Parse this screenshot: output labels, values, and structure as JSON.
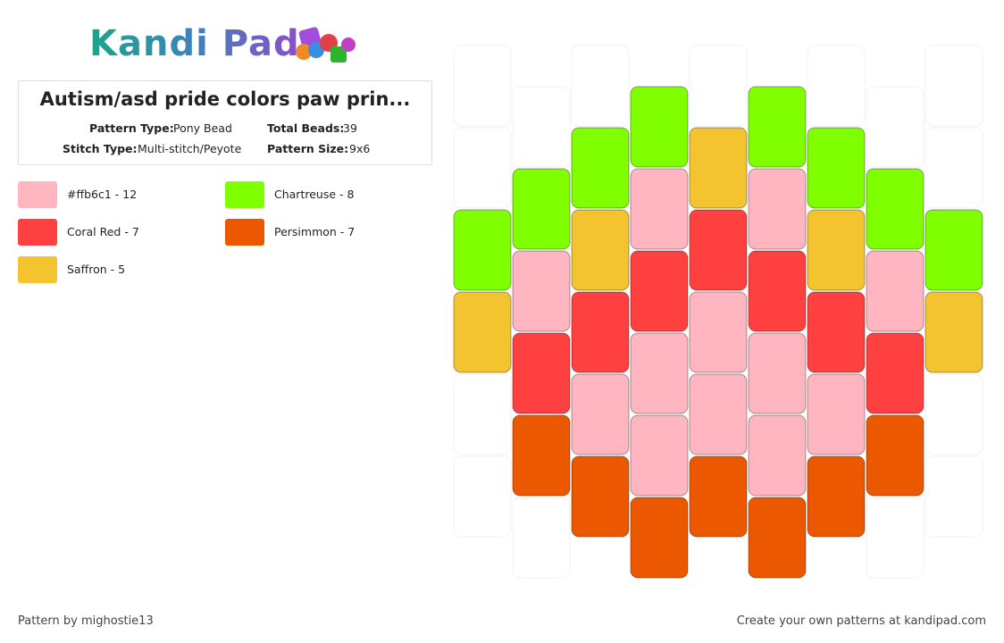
{
  "header": {
    "logo": "Kandi Pad"
  },
  "info": {
    "title": "Autism/asd pride colors paw prin...",
    "fields": [
      {
        "label": "Pattern Type:",
        "value": "Pony Bead"
      },
      {
        "label": "Total Beads:",
        "value": "39"
      },
      {
        "label": "Stitch Type:",
        "value": "Multi-stitch/Peyote"
      },
      {
        "label": "Pattern Size:",
        "value": "9x6"
      }
    ]
  },
  "legend": [
    {
      "label": "#ffb6c1 - 12",
      "color": "#ffb6c1"
    },
    {
      "label": "Chartreuse - 8",
      "color": "#7fff00"
    },
    {
      "label": "Coral Red - 7",
      "color": "#ff4040"
    },
    {
      "label": "Persimmon - 7",
      "color": "#ec5800"
    },
    {
      "label": "Saffron - 5",
      "color": "#f4c430"
    }
  ],
  "beads": {
    "columns": [
      [
        null,
        null,
        1,
        4,
        null,
        null
      ],
      [
        null,
        1,
        0,
        2,
        3,
        null
      ],
      [
        null,
        1,
        4,
        2,
        0,
        3
      ],
      [
        1,
        0,
        2,
        0,
        0,
        3
      ],
      [
        null,
        4,
        2,
        0,
        0,
        3
      ],
      [
        1,
        0,
        2,
        0,
        0,
        3
      ],
      [
        null,
        1,
        4,
        2,
        0,
        3
      ],
      [
        null,
        1,
        0,
        2,
        3,
        null
      ],
      [
        null,
        null,
        1,
        4,
        null,
        null
      ]
    ]
  },
  "footer": {
    "credit": "Pattern by mighostie13",
    "link": "Create your own patterns at kandipad.com"
  }
}
